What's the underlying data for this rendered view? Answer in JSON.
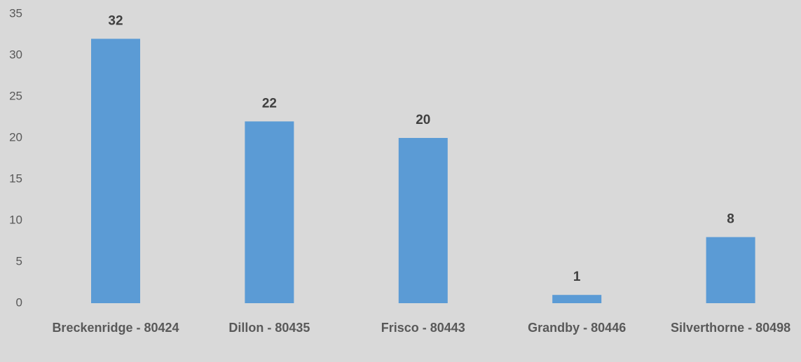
{
  "chart_data": {
    "type": "bar",
    "categories": [
      "Breckenridge - 80424",
      "Dillon - 80435",
      "Frisco - 80443",
      "Grandby - 80446",
      "Silverthorne - 80498"
    ],
    "values": [
      32,
      22,
      20,
      1,
      8
    ],
    "color": "#5b9bd5",
    "ylim": [
      0,
      35
    ],
    "yticks": [
      0,
      5,
      10,
      15,
      20,
      25,
      30,
      35
    ],
    "grid": false
  }
}
